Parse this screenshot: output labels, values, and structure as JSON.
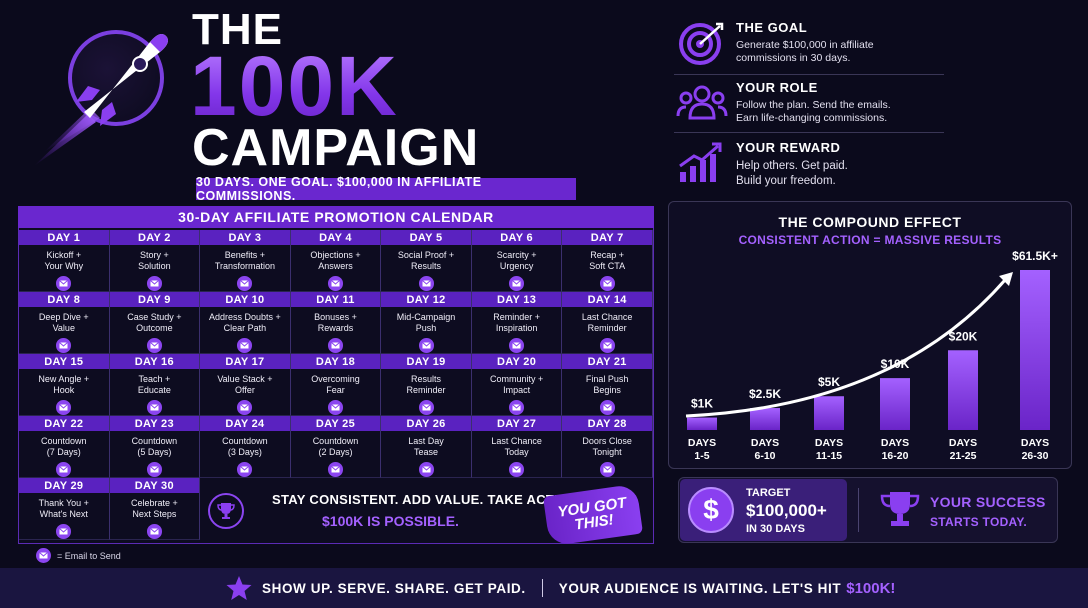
{
  "header": {
    "title_the": "THE",
    "title_number": "100K",
    "title_campaign": "CAMPAIGN",
    "tagline": "30 DAYS. ONE GOAL. $100,000 IN AFFILIATE COMMISSIONS."
  },
  "info": [
    {
      "title": "THE GOAL",
      "line1": "Generate $100,000 in affiliate",
      "line2": "commissions in 30 days.",
      "icon": "target-icon"
    },
    {
      "title": "YOUR ROLE",
      "line1": "Follow the plan. Send the emails.",
      "line2": "Earn life-changing commissions.",
      "icon": "team-icon"
    },
    {
      "title": "YOUR REWARD",
      "line1": "Help others. Get paid.",
      "line2": "Build your freedom.",
      "icon": "growth-chart-icon"
    }
  ],
  "calendar": {
    "title": "30-DAY AFFILIATE PROMOTION CALENDAR",
    "days": [
      {
        "day": "DAY 1",
        "l1": "Kickoff +",
        "l2": "Your Why"
      },
      {
        "day": "DAY 2",
        "l1": "Story +",
        "l2": "Solution"
      },
      {
        "day": "DAY 3",
        "l1": "Benefits +",
        "l2": "Transformation"
      },
      {
        "day": "DAY 4",
        "l1": "Objections +",
        "l2": "Answers"
      },
      {
        "day": "DAY 5",
        "l1": "Social Proof +",
        "l2": "Results"
      },
      {
        "day": "DAY 6",
        "l1": "Scarcity +",
        "l2": "Urgency"
      },
      {
        "day": "DAY 7",
        "l1": "Recap +",
        "l2": "Soft CTA"
      },
      {
        "day": "DAY 8",
        "l1": "Deep Dive +",
        "l2": "Value"
      },
      {
        "day": "DAY 9",
        "l1": "Case Study +",
        "l2": "Outcome"
      },
      {
        "day": "DAY 10",
        "l1": "Address Doubts +",
        "l2": "Clear Path"
      },
      {
        "day": "DAY 11",
        "l1": "Bonuses +",
        "l2": "Rewards"
      },
      {
        "day": "DAY 12",
        "l1": "Mid-Campaign",
        "l2": "Push"
      },
      {
        "day": "DAY 13",
        "l1": "Reminder +",
        "l2": "Inspiration"
      },
      {
        "day": "DAY 14",
        "l1": "Last Chance",
        "l2": "Reminder"
      },
      {
        "day": "DAY 15",
        "l1": "New Angle +",
        "l2": "Hook"
      },
      {
        "day": "DAY 16",
        "l1": "Teach +",
        "l2": "Educate"
      },
      {
        "day": "DAY 17",
        "l1": "Value Stack +",
        "l2": "Offer"
      },
      {
        "day": "DAY 18",
        "l1": "Overcoming",
        "l2": "Fear"
      },
      {
        "day": "DAY 19",
        "l1": "Results",
        "l2": "Reminder"
      },
      {
        "day": "DAY 20",
        "l1": "Community +",
        "l2": "Impact"
      },
      {
        "day": "DAY 21",
        "l1": "Final Push",
        "l2": "Begins"
      },
      {
        "day": "DAY 22",
        "l1": "Countdown",
        "l2": "(7 Days)"
      },
      {
        "day": "DAY 23",
        "l1": "Countdown",
        "l2": "(5 Days)"
      },
      {
        "day": "DAY 24",
        "l1": "Countdown",
        "l2": "(3 Days)"
      },
      {
        "day": "DAY 25",
        "l1": "Countdown",
        "l2": "(2 Days)"
      },
      {
        "day": "DAY 26",
        "l1": "Last Day",
        "l2": "Tease"
      },
      {
        "day": "DAY 27",
        "l1": "Last Chance",
        "l2": "Today"
      },
      {
        "day": "DAY 28",
        "l1": "Doors Close",
        "l2": "Tonight"
      },
      {
        "day": "DAY 29",
        "l1": "Thank You +",
        "l2": "What's Next"
      },
      {
        "day": "DAY 30",
        "l1": "Celebrate +",
        "l2": "Next Steps"
      }
    ],
    "cta_line1": "STAY CONSISTENT. ADD VALUE. TAKE ACTION.",
    "cta_line2": "$100K IS POSSIBLE.",
    "brush_l1": "YOU GOT",
    "brush_l2": "THIS!",
    "legend": "= Email to Send"
  },
  "compound": {
    "title": "THE COMPOUND EFFECT",
    "subtitle": "CONSISTENT ACTION = MASSIVE RESULTS"
  },
  "chart_data": {
    "type": "bar",
    "categories": [
      "DAYS 1-5",
      "DAYS 6-10",
      "DAYS 11-15",
      "DAYS 16-20",
      "DAYS 21-25",
      "DAYS 26-30"
    ],
    "category_lines": [
      [
        "DAYS",
        "1-5"
      ],
      [
        "DAYS",
        "6-10"
      ],
      [
        "DAYS",
        "11-15"
      ],
      [
        "DAYS",
        "16-20"
      ],
      [
        "DAYS",
        "21-25"
      ],
      [
        "DAYS",
        "26-30"
      ]
    ],
    "values": [
      1000,
      2500,
      5000,
      10000,
      20000,
      61500
    ],
    "value_labels": [
      "$1K",
      "$2.5K",
      "$5K",
      "$10K",
      "$20K",
      "$61.5K+"
    ],
    "title": "THE COMPOUND EFFECT",
    "xlabel": "",
    "ylabel": "",
    "grid": false,
    "bar_color": "#8a3ff0"
  },
  "target": {
    "label": "TARGET",
    "amount": "$100,000+",
    "days": "IN 30 DAYS",
    "success_line1": "YOUR SUCCESS",
    "success_line2": "STARTS TODAY."
  },
  "footer": {
    "text1": "SHOW UP. SERVE. SHARE. GET PAID.",
    "text2": "YOUR AUDIENCE IS WAITING. LET'S HIT",
    "accent": "$100K!"
  },
  "colors": {
    "accent": "#8a3ff0",
    "accent_light": "#a461ff",
    "background": "#0b0a1c"
  }
}
